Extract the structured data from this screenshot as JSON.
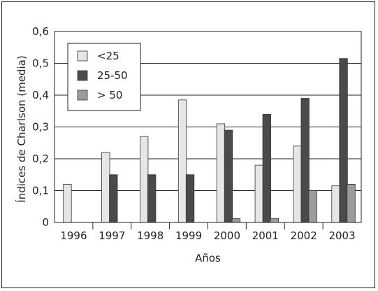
{
  "chart_data": {
    "type": "bar",
    "title": "",
    "xlabel": "Años",
    "ylabel": "Índices de Charlson (media)",
    "ylim": [
      0,
      0.6
    ],
    "yticks": [
      "0",
      "0,1",
      "0,2",
      "0,3",
      "0,4",
      "0,5",
      "0,6"
    ],
    "categories": [
      "1996",
      "1997",
      "1998",
      "1999",
      "2000",
      "2001",
      "2002",
      "2003"
    ],
    "grid": true,
    "legend_position": "top-left",
    "series": [
      {
        "name": "<25",
        "color": "#e6e6e6",
        "values": [
          0.12,
          0.22,
          0.27,
          0.385,
          0.31,
          0.18,
          0.24,
          0.115
        ]
      },
      {
        "name": "25-50",
        "color": "#4a4a4a",
        "values": [
          0,
          0.15,
          0.15,
          0.15,
          0.29,
          0.34,
          0.39,
          0.515
        ]
      },
      {
        "name": "> 50",
        "color": "#9c9c9c",
        "values": [
          0,
          0,
          0,
          0,
          0.012,
          0.012,
          0.1,
          0.12
        ]
      }
    ]
  }
}
